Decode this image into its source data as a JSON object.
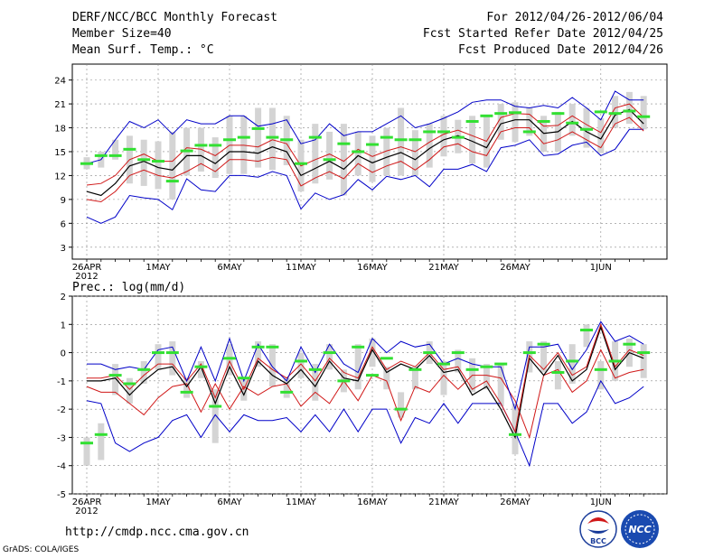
{
  "header": {
    "title": "DERF/NCC/BCC Monthly Forecast",
    "member_size": "Member Size=40",
    "variable1": "Mean Surf. Temp.: °C",
    "forecast_for": "For 2012/04/26-2012/06/04",
    "started": "Fcst Started Refer Date 2012/04/25",
    "produced": "Fcst Produced Date 2012/04/26"
  },
  "footer": {
    "url": "http://cmdp.ncc.cma.gov.cn",
    "grads": "GrADS: COLA/IGES",
    "logo_bcc": "BCC",
    "logo_ncc": "NCC"
  },
  "colors": {
    "mean": "#000000",
    "spread": "#d01818",
    "extreme": "#0000c8",
    "box": "#d4d4d4",
    "green": "#32e032",
    "grid": "#888888"
  },
  "chart_data": [
    {
      "type": "line",
      "title": "Mean Surf. Temp.: °C",
      "x_labels": [
        "26APR",
        "1MAY",
        "6MAY",
        "11MAY",
        "16MAY",
        "21MAY",
        "26MAY",
        "1JUN"
      ],
      "x_label_days": [
        0,
        5,
        10,
        15,
        20,
        25,
        30,
        36
      ],
      "year_label": "2012",
      "ylim": [
        1.5,
        26
      ],
      "yticks": [
        "3",
        "6",
        "9",
        "12",
        "15",
        "18",
        "21",
        "24"
      ],
      "ytick_values": [
        3,
        6,
        9,
        12,
        15,
        18,
        21,
        24
      ],
      "days": 40,
      "series": [
        {
          "name": "max",
          "values": [
            6.8,
            6,
            6.8,
            9.5,
            9.2,
            9,
            7.7,
            11.6,
            10.2,
            10,
            12,
            12,
            11.8,
            12.5,
            12,
            7.8,
            9.8,
            9,
            9.6,
            11.5,
            10.2,
            11.9,
            11.5,
            12,
            10.6,
            12.8,
            12.8,
            13.4,
            12.5,
            15.5,
            15.8,
            16.5,
            14.5,
            14.7,
            15.8,
            16.2,
            14.5,
            15.3,
            17.8,
            17.8
          ]
        },
        {
          "name": "upper",
          "values": [
            9,
            8.7,
            10,
            12,
            12.7,
            12,
            11.7,
            12.5,
            13.5,
            12.5,
            14,
            14,
            13.8,
            14.3,
            14,
            10.7,
            11.7,
            12.5,
            11.6,
            13.5,
            12.4,
            13.2,
            13.8,
            12.7,
            14,
            15.6,
            16,
            15,
            14.5,
            17.5,
            18,
            18,
            16,
            16.5,
            17.5,
            16.5,
            15.5,
            18.5,
            19.3,
            17.6
          ]
        },
        {
          "name": "mean",
          "values": [
            10,
            9.5,
            11,
            13.2,
            13.8,
            13,
            12.7,
            14.5,
            14.5,
            13.5,
            15,
            15,
            14.8,
            15.6,
            15,
            12,
            12.9,
            13.8,
            12.8,
            14.5,
            13.6,
            14.3,
            14.9,
            14,
            15.4,
            16.5,
            17,
            16.3,
            15.5,
            18.5,
            19,
            19,
            17.3,
            17.5,
            18.8,
            17.5,
            16.6,
            19.6,
            20.3,
            18.5
          ]
        },
        {
          "name": "lower",
          "values": [
            10.8,
            11,
            12,
            14,
            14.7,
            13.8,
            13.8,
            15.5,
            15.3,
            14.5,
            15.8,
            15.8,
            15.6,
            16.5,
            16,
            13.2,
            14,
            14.7,
            13.8,
            15.3,
            14.4,
            15.1,
            15.6,
            15,
            16.2,
            17.2,
            17.7,
            17,
            16.3,
            19.3,
            19.8,
            19.7,
            18.2,
            18.3,
            19.5,
            18.4,
            17.4,
            20.5,
            21,
            19.3
          ]
        },
        {
          "name": "min",
          "values": [
            13.5,
            14,
            16.5,
            18.8,
            18,
            19,
            17.2,
            19,
            18.5,
            18.5,
            19.5,
            19.5,
            18.2,
            18.5,
            19,
            16,
            16.5,
            18.5,
            17,
            17.5,
            17.5,
            18.5,
            19.5,
            18,
            18.5,
            19.2,
            20,
            21.2,
            21.5,
            21.5,
            20.7,
            20.5,
            20.8,
            20.5,
            21.8,
            20.5,
            19,
            22.6,
            21.5,
            21.5
          ]
        },
        {
          "name": "obs",
          "values": [
            13.5,
            14.5,
            14.5,
            15.3,
            14,
            13.8,
            11.3,
            15.1,
            15.8,
            15.8,
            16.5,
            16.8,
            17.9,
            16.8,
            16.5,
            13.5,
            16.8,
            14,
            16,
            15,
            15.9,
            16.8,
            16.5,
            16.5,
            17.5,
            17.5,
            16.8,
            18.8,
            19.5,
            19.8,
            19.9,
            17.5,
            18.8,
            19.8,
            18.6,
            17.8,
            20,
            19.8,
            20.1,
            19.4
          ]
        }
      ],
      "boxes": [
        [
          12.8,
          14.3
        ],
        [
          13,
          15
        ],
        [
          14,
          16.5
        ],
        [
          11,
          17
        ],
        [
          10.7,
          16.5
        ],
        [
          10.3,
          16.3
        ],
        [
          9,
          17.5
        ],
        [
          12,
          18
        ],
        [
          12.5,
          18
        ],
        [
          11.7,
          16.8
        ],
        [
          12.2,
          19.5
        ],
        [
          12.2,
          19.5
        ],
        [
          13,
          20.5
        ],
        [
          12.7,
          20.5
        ],
        [
          13.3,
          19.5
        ],
        [
          10,
          16.5
        ],
        [
          11,
          18.5
        ],
        [
          11.5,
          17.5
        ],
        [
          9.5,
          18.5
        ],
        [
          12,
          17.5
        ],
        [
          11.2,
          17
        ],
        [
          12,
          18
        ],
        [
          12,
          20.5
        ],
        [
          12,
          17.7
        ],
        [
          13,
          18.5
        ],
        [
          14.4,
          19.5
        ],
        [
          14.8,
          19
        ],
        [
          13.5,
          19.5
        ],
        [
          13,
          19.5
        ],
        [
          16.5,
          21
        ],
        [
          16.2,
          21.2
        ],
        [
          17,
          20.5
        ],
        [
          15,
          19.5
        ],
        [
          15,
          20
        ],
        [
          17,
          21
        ],
        [
          15.5,
          20.5
        ],
        [
          14.8,
          19.2
        ],
        [
          18,
          22
        ],
        [
          18.5,
          22.5
        ],
        [
          17.8,
          22
        ]
      ]
    },
    {
      "type": "line",
      "title": "Prec.: log(mm/d)",
      "x_labels": [
        "26APR",
        "1MAY",
        "6MAY",
        "11MAY",
        "16MAY",
        "21MAY",
        "26MAY",
        "1JUN"
      ],
      "x_label_days": [
        0,
        5,
        10,
        15,
        20,
        25,
        30,
        36
      ],
      "year_label": "2012",
      "ylim": [
        -5,
        2
      ],
      "yticks": [
        "-5",
        "-4",
        "-3",
        "-2",
        "-1",
        "0",
        "1",
        "2"
      ],
      "ytick_values": [
        -5,
        -4,
        -3,
        -2,
        -1,
        0,
        1,
        2
      ],
      "days": 40,
      "series": [
        {
          "name": "max",
          "values": [
            -1.7,
            -1.8,
            -3.2,
            -3.5,
            -3.2,
            -3,
            -2.4,
            -2.2,
            -3,
            -2.2,
            -2.8,
            -2.2,
            -2.4,
            -2.4,
            -2.3,
            -2.8,
            -2.2,
            -2.8,
            -2,
            -2.8,
            -2,
            -2,
            -3.2,
            -2.3,
            -2.5,
            -1.8,
            -2.5,
            -1.8,
            -1.8,
            -1.8,
            -2.8,
            -4,
            -1.8,
            -1.8,
            -2.5,
            -2.1,
            -1,
            -1.8,
            -1.6,
            -1.2
          ]
        },
        {
          "name": "upper",
          "values": [
            -1.2,
            -1.4,
            -1.4,
            -1.8,
            -2.2,
            -1.6,
            -1.2,
            -1.1,
            -2.1,
            -1.1,
            -2,
            -1.2,
            -1.5,
            -1.2,
            -1.1,
            -1.9,
            -1.4,
            -1.8,
            -1,
            -1.7,
            -0.8,
            -1,
            -2.4,
            -1.2,
            -1.4,
            -0.8,
            -1.3,
            -0.8,
            -0.8,
            -0.9,
            -1.7,
            -3,
            -0.8,
            -0.6,
            -1.4,
            -1,
            0.1,
            -0.9,
            -0.7,
            -0.6
          ]
        },
        {
          "name": "mean",
          "values": [
            -1,
            -1,
            -0.9,
            -1.5,
            -1,
            -0.6,
            -0.5,
            -1.2,
            -0.5,
            -1.8,
            -0.5,
            -1.5,
            -0.3,
            -0.8,
            -1.1,
            -0.6,
            -1.2,
            -0.3,
            -0.9,
            -1,
            0.1,
            -0.7,
            -0.4,
            -0.6,
            -0.1,
            -0.7,
            -0.6,
            -1.5,
            -1.2,
            -2,
            -3,
            -0.2,
            -0.8,
            -0.1,
            -1,
            -0.6,
            0.9,
            -0.6,
            0,
            -0.2
          ]
        },
        {
          "name": "lower",
          "values": [
            -0.9,
            -0.9,
            -0.8,
            -1.3,
            -0.8,
            -0.4,
            -0.4,
            -1,
            -0.4,
            -1.6,
            -0.3,
            -1.3,
            -0.2,
            -0.6,
            -0.9,
            -0.4,
            -1,
            -0.2,
            -0.7,
            -0.9,
            0.2,
            -0.6,
            -0.3,
            -0.5,
            0,
            -0.6,
            -0.5,
            -1.3,
            -1,
            -1.8,
            -2.8,
            -0.1,
            -0.6,
            0,
            -0.8,
            -0.5,
            1,
            -0.5,
            0.1,
            -0.1
          ]
        },
        {
          "name": "min",
          "values": [
            -0.4,
            -0.4,
            -0.6,
            -0.5,
            -0.6,
            0.1,
            0.2,
            -1,
            0.2,
            -1,
            0.5,
            -1,
            0.3,
            -0.5,
            -1,
            0.2,
            -0.7,
            0.3,
            -0.4,
            -0.7,
            0.5,
            0,
            0.4,
            0.2,
            0.3,
            -0.4,
            -0.2,
            -0.4,
            -0.5,
            -0.5,
            -2,
            0.2,
            0.2,
            0.3,
            -0.6,
            0.1,
            1.1,
            0.4,
            0.6,
            0.3
          ]
        },
        {
          "name": "obs",
          "values": [
            -3.2,
            -2.9,
            -0.8,
            -1.1,
            -0.6,
            0,
            0,
            -1.4,
            -0.5,
            -1.9,
            -0.2,
            -0.9,
            0.2,
            0.2,
            -1.4,
            -0.3,
            -0.6,
            0,
            -1,
            0.2,
            -0.8,
            -0.2,
            -2,
            -0.6,
            0,
            -0.4,
            0,
            -0.6,
            -0.5,
            -0.4,
            -2.9,
            0,
            0.3,
            -0.7,
            -0.3,
            0.8,
            -0.6,
            -0.3,
            0.3,
            0
          ]
        }
      ],
      "boxes": [
        [
          -4,
          -3
        ],
        [
          -3.8,
          -2.5
        ],
        [
          -1.5,
          -0.4
        ],
        [
          -1.8,
          -0.9
        ],
        [
          -1.1,
          -0.3
        ],
        [
          -0.6,
          0.3
        ],
        [
          -0.8,
          0.4
        ],
        [
          -1.6,
          -0.9
        ],
        [
          -0.9,
          -0.3
        ],
        [
          -3.2,
          -1.3
        ],
        [
          -0.8,
          0.3
        ],
        [
          -1.7,
          -0.9
        ],
        [
          -0.5,
          0.4
        ],
        [
          -1.2,
          0.3
        ],
        [
          -1.6,
          -0.9
        ],
        [
          -0.9,
          0
        ],
        [
          -1.7,
          -0.4
        ],
        [
          -0.6,
          0.3
        ],
        [
          -1.4,
          -0.6
        ],
        [
          -1.3,
          0.3
        ],
        [
          -0.5,
          0.5
        ],
        [
          -1.3,
          -0.5
        ],
        [
          -2.3,
          -1.4
        ],
        [
          -1.3,
          -0.5
        ],
        [
          -0.4,
          0.4
        ],
        [
          -1.5,
          -0.3
        ],
        [
          -0.7,
          0.1
        ],
        [
          -1.4,
          -0.2
        ],
        [
          -1.3,
          -0.4
        ],
        [
          -1.9,
          -0.4
        ],
        [
          -3.6,
          -1.8
        ],
        [
          -0.7,
          0.4
        ],
        [
          -0.7,
          0.4
        ],
        [
          -1.3,
          -0.3
        ],
        [
          -1.1,
          0.3
        ],
        [
          0.2,
          1
        ],
        [
          -1.3,
          -0.3
        ],
        [
          -1,
          0.4
        ],
        [
          -0.5,
          0.5
        ],
        [
          -0.9,
          0.3
        ]
      ]
    }
  ]
}
